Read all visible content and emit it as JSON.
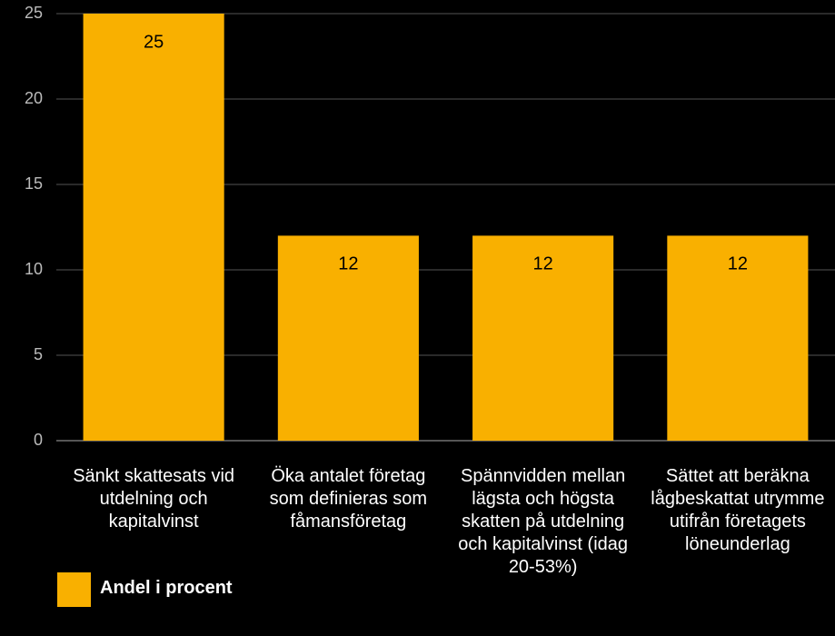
{
  "chart_data": {
    "type": "bar",
    "categories": [
      "Sänkt skattesats vid utdelning och kapitalvinst",
      "Öka antalet företag som definieras som fåmansföretag",
      "Spännvidden mellan lägsta och högsta skatten på utdelning och kapitalvinst (idag 20-53%)",
      "Sättet att beräkna lågbeskattat utrymme utifrån företagets löneunderlag"
    ],
    "series": [
      {
        "name": "Andel i procent",
        "color": "#f9b000",
        "values": [
          25,
          12,
          12,
          12
        ]
      }
    ],
    "ylim": [
      0,
      25
    ],
    "yticks": [
      0,
      5,
      10,
      15,
      20,
      25
    ],
    "grid": true
  }
}
